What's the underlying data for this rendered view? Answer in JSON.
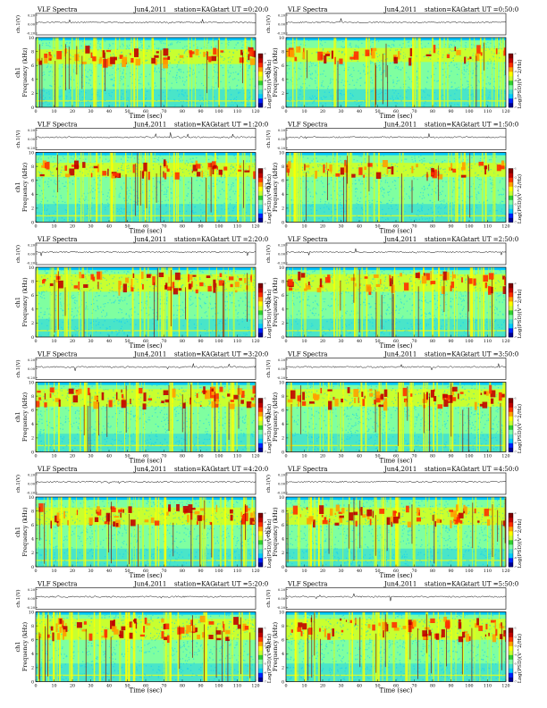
{
  "chart_data": [
    {
      "type": "heatmap",
      "header": {
        "left": "VLF Spectra",
        "date": "Jun4,2011",
        "station": "station=KAG",
        "start": "start UT =0:20:0"
      },
      "time_axis": {
        "label": "Time (sec)",
        "range": [
          0,
          120
        ],
        "ticks": [
          0,
          10,
          20,
          30,
          40,
          50,
          60,
          70,
          80,
          90,
          100,
          110,
          120
        ]
      },
      "freq_axis": {
        "label": "Frequency (kHz)",
        "ylabel2": "ch1",
        "range": [
          0,
          10
        ],
        "ticks": [
          0,
          2,
          4,
          6,
          8,
          10
        ]
      },
      "waveform_axis": {
        "label": "ch.1(V)",
        "ticks": [
          "0.20",
          "0.00",
          "-0.20"
        ],
        "range": [
          -0.2,
          0.2
        ]
      },
      "colorbar": {
        "label": "Log(PSD)(V^2/Hz)",
        "ticks": [
          "-1",
          "-2",
          "-3",
          "-4",
          "-5",
          "-6",
          "-7"
        ]
      },
      "band_low": 6.2,
      "band_high": 8.3,
      "intensity": 0.6
    },
    {
      "type": "heatmap",
      "header": {
        "left": "VLF Spectra",
        "date": "Jun4,2011",
        "station": "station=KAG",
        "start": "start UT =0:50:0"
      },
      "time_axis": {
        "label": "Time (sec)",
        "range": [
          0,
          120
        ],
        "ticks": [
          0,
          10,
          20,
          30,
          40,
          50,
          60,
          70,
          80,
          90,
          100,
          110,
          120
        ]
      },
      "freq_axis": {
        "label": "Frequency (kHz)",
        "ylabel2": "ch1",
        "range": [
          0,
          10
        ],
        "ticks": [
          0,
          2,
          4,
          6,
          8,
          10
        ]
      },
      "waveform_axis": {
        "label": "ch.1(V)",
        "ticks": [
          "0.20",
          "0.00",
          "-0.20"
        ],
        "range": [
          -0.2,
          0.2
        ]
      },
      "colorbar": {
        "label": "Log(PSD)(V^2/Hz)",
        "ticks": [
          "-1",
          "-2",
          "-3",
          "-4",
          "-5",
          "-6",
          "-7"
        ]
      },
      "band_low": 6.5,
      "band_high": 8.5,
      "intensity": 0.35
    },
    {
      "type": "heatmap",
      "header": {
        "left": "VLF Spectra",
        "date": "Jun4,2011",
        "station": "station=KAG",
        "start": "start UT =1:20:0"
      },
      "time_axis": {
        "label": "Time (sec)",
        "range": [
          0,
          120
        ],
        "ticks": [
          0,
          10,
          20,
          30,
          40,
          50,
          60,
          70,
          80,
          90,
          100,
          110,
          120
        ]
      },
      "freq_axis": {
        "label": "Frequency (kHz)",
        "ylabel2": "ch1",
        "range": [
          0,
          10
        ],
        "ticks": [
          0,
          2,
          4,
          6,
          8,
          10
        ]
      },
      "waveform_axis": {
        "label": "ch.1(V)",
        "ticks": [
          "0.20",
          "0.00",
          "-0.20"
        ],
        "range": [
          -0.2,
          0.2
        ]
      },
      "colorbar": {
        "label": "Log(PSD)(V^2/Hz)",
        "ticks": [
          "-1",
          "-2",
          "-3",
          "-4",
          "-5",
          "-6",
          "-7"
        ]
      },
      "band_low": 6.5,
      "band_high": 8.5,
      "intensity": 0.55
    },
    {
      "type": "heatmap",
      "header": {
        "left": "VLF Spectra",
        "date": "Jun4,2011",
        "station": "station=KAG",
        "start": "start UT =1:50:0"
      },
      "time_axis": {
        "label": "Time (sec)",
        "range": [
          0,
          120
        ],
        "ticks": [
          0,
          10,
          20,
          30,
          40,
          50,
          60,
          70,
          80,
          90,
          100,
          110,
          120
        ]
      },
      "freq_axis": {
        "label": "Frequency (kHz)",
        "ylabel2": "ch1",
        "range": [
          0,
          10
        ],
        "ticks": [
          0,
          2,
          4,
          6,
          8,
          10
        ]
      },
      "waveform_axis": {
        "label": "ch.1(V)",
        "ticks": [
          "0.20",
          "0.00",
          "-0.20"
        ],
        "range": [
          -0.2,
          0.2
        ]
      },
      "colorbar": {
        "label": "Log(PSD)(V^2/Hz)",
        "ticks": [
          "-1",
          "-2",
          "-3",
          "-4",
          "-5",
          "-6",
          "-7"
        ]
      },
      "band_low": 6.5,
      "band_high": 8.5,
      "intensity": 0.4
    },
    {
      "type": "heatmap",
      "header": {
        "left": "VLF Spectra",
        "date": "Jun4,2011",
        "station": "station=KAG",
        "start": "start UT =2:20:0"
      },
      "time_axis": {
        "label": "Time (sec)",
        "range": [
          0,
          120
        ],
        "ticks": [
          0,
          10,
          20,
          30,
          40,
          50,
          60,
          70,
          80,
          90,
          100,
          110,
          120
        ]
      },
      "freq_axis": {
        "label": "Frequency (kHz)",
        "ylabel2": "ch1",
        "range": [
          0,
          10
        ],
        "ticks": [
          0,
          2,
          4,
          6,
          8,
          10
        ]
      },
      "waveform_axis": {
        "label": "ch.1(V)",
        "ticks": [
          "0.20",
          "0.00",
          "-0.20"
        ],
        "range": [
          -0.2,
          0.2
        ]
      },
      "colorbar": {
        "label": "Log(PSD)(V^2/Hz)",
        "ticks": [
          "-1",
          "-2",
          "-3",
          "-4",
          "-5",
          "-6",
          "-7"
        ]
      },
      "band_low": 6.5,
      "band_high": 9.0,
      "intensity": 0.6
    },
    {
      "type": "heatmap",
      "header": {
        "left": "VLF Spectra",
        "date": "Jun4,2011",
        "station": "station=KAG",
        "start": "start UT =2:50:0"
      },
      "time_axis": {
        "label": "Time (sec)",
        "range": [
          0,
          120
        ],
        "ticks": [
          0,
          10,
          20,
          30,
          40,
          50,
          60,
          70,
          80,
          90,
          100,
          110,
          120
        ]
      },
      "freq_axis": {
        "label": "Frequency (kHz)",
        "ylabel2": "ch1",
        "range": [
          0,
          10
        ],
        "ticks": [
          0,
          2,
          4,
          6,
          8,
          10
        ]
      },
      "waveform_axis": {
        "label": "ch.1(V)",
        "ticks": [
          "0.20",
          "0.00",
          "-0.20"
        ],
        "range": [
          -0.2,
          0.2
        ]
      },
      "colorbar": {
        "label": "Log(PSD)(V^2/Hz)",
        "ticks": [
          "-1",
          "-2",
          "-3",
          "-4",
          "-5",
          "-6",
          "-7"
        ]
      },
      "band_low": 6.5,
      "band_high": 9.0,
      "intensity": 0.6
    },
    {
      "type": "heatmap",
      "header": {
        "left": "VLF Spectra",
        "date": "Jun4,2011",
        "station": "station=KAG",
        "start": "start UT =3:20:0"
      },
      "time_axis": {
        "label": "Time (sec)",
        "range": [
          0,
          120
        ],
        "ticks": [
          0,
          10,
          20,
          30,
          40,
          50,
          60,
          70,
          80,
          90,
          100,
          110,
          120
        ]
      },
      "freq_axis": {
        "label": "Frequency (kHz)",
        "ylabel2": "ch1",
        "range": [
          0,
          10
        ],
        "ticks": [
          0,
          2,
          4,
          6,
          8,
          10
        ]
      },
      "waveform_axis": {
        "label": "ch.1(V)",
        "ticks": [
          "0.20",
          "0.00",
          "-0.20"
        ],
        "range": [
          -0.2,
          0.2
        ]
      },
      "colorbar": {
        "label": "Log(PSD)(V^2/Hz)",
        "ticks": [
          "-1",
          "-2",
          "-3",
          "-4",
          "-5",
          "-6",
          "-7"
        ]
      },
      "band_low": 6.5,
      "band_high": 9.0,
      "intensity": 0.7
    },
    {
      "type": "heatmap",
      "header": {
        "left": "VLF Spectra",
        "date": "Jun4,2011",
        "station": "station=KAG",
        "start": "start UT =3:50:0"
      },
      "time_axis": {
        "label": "Time (sec)",
        "range": [
          0,
          120
        ],
        "ticks": [
          0,
          10,
          20,
          30,
          40,
          50,
          60,
          70,
          80,
          90,
          100,
          110,
          120
        ]
      },
      "freq_axis": {
        "label": "Frequency (kHz)",
        "ylabel2": "ch1",
        "range": [
          0,
          10
        ],
        "ticks": [
          0,
          2,
          4,
          6,
          8,
          10
        ]
      },
      "waveform_axis": {
        "label": "ch.1(V)",
        "ticks": [
          "0.20",
          "0.00",
          "-0.20"
        ],
        "range": [
          -0.2,
          0.2
        ]
      },
      "colorbar": {
        "label": "Log(PSD)(V^2/Hz)",
        "ticks": [
          "-1",
          "-2",
          "-3",
          "-4",
          "-5",
          "-6",
          "-7"
        ]
      },
      "band_low": 6.5,
      "band_high": 9.0,
      "intensity": 0.75
    },
    {
      "type": "heatmap",
      "header": {
        "left": "VLF Spectra",
        "date": "Jun4,2011",
        "station": "station=KAG",
        "start": "start UT =4:20:0"
      },
      "time_axis": {
        "label": "Time (sec)",
        "range": [
          0,
          120
        ],
        "ticks": [
          0,
          10,
          20,
          30,
          40,
          50,
          60,
          70,
          80,
          90,
          100,
          110,
          120
        ]
      },
      "freq_axis": {
        "label": "Frequency (kHz)",
        "ylabel2": "ch1",
        "range": [
          0,
          10
        ],
        "ticks": [
          0,
          2,
          4,
          6,
          8,
          10
        ]
      },
      "waveform_axis": {
        "label": "ch.1(V)",
        "ticks": [
          "0.20",
          "0.00",
          "-0.20"
        ],
        "range": [
          -0.2,
          0.2
        ]
      },
      "colorbar": {
        "label": "Log(PSD)(V^2/Hz)",
        "ticks": [
          "-1",
          "-2",
          "-3",
          "-4",
          "-5",
          "-6",
          "-7"
        ]
      },
      "band_low": 6.0,
      "band_high": 8.5,
      "intensity": 0.7
    },
    {
      "type": "heatmap",
      "header": {
        "left": "VLF Spectra",
        "date": "Jun4,2011",
        "station": "station=KAG",
        "start": "start UT =4:50:0"
      },
      "time_axis": {
        "label": "Time (sec)",
        "range": [
          0,
          120
        ],
        "ticks": [
          0,
          10,
          20,
          30,
          40,
          50,
          60,
          70,
          80,
          90,
          100,
          110,
          120
        ]
      },
      "freq_axis": {
        "label": "Frequency (kHz)",
        "ylabel2": "ch1",
        "range": [
          0,
          10
        ],
        "ticks": [
          0,
          2,
          4,
          6,
          8,
          10
        ]
      },
      "waveform_axis": {
        "label": "ch.1(V)",
        "ticks": [
          "0.20",
          "0.00",
          "-0.20"
        ],
        "range": [
          -0.2,
          0.2
        ]
      },
      "colorbar": {
        "label": "Log(PSD)(V^2/Hz)",
        "ticks": [
          "-1",
          "-2",
          "-3",
          "-4",
          "-5",
          "-6",
          "-7"
        ]
      },
      "band_low": 6.0,
      "band_high": 8.5,
      "intensity": 0.8
    },
    {
      "type": "heatmap",
      "header": {
        "left": "VLF Spectra",
        "date": "Jun4,2011",
        "station": "station=KAG",
        "start": "start UT =5:20:0"
      },
      "time_axis": {
        "label": "Time (sec)",
        "range": [
          0,
          120
        ],
        "ticks": [
          0,
          10,
          20,
          30,
          40,
          50,
          60,
          70,
          80,
          90,
          100,
          110,
          120
        ]
      },
      "freq_axis": {
        "label": "Frequency (kHz)",
        "ylabel2": "ch1",
        "range": [
          0,
          10
        ],
        "ticks": [
          0,
          2,
          4,
          6,
          8,
          10
        ]
      },
      "waveform_axis": {
        "label": "ch.1(V)",
        "ticks": [
          "0.20",
          "0.00",
          "-0.20"
        ],
        "range": [
          -0.2,
          0.2
        ]
      },
      "colorbar": {
        "label": "Log(PSD)(V^2/Hz)",
        "ticks": [
          "-1",
          "-2",
          "-3",
          "-4",
          "-5",
          "-6",
          "-7"
        ]
      },
      "band_low": 6.0,
      "band_high": 9.0,
      "intensity": 0.85
    },
    {
      "type": "heatmap",
      "header": {
        "left": "VLF Spectra",
        "date": "Jun4,2011",
        "station": "station=KAG",
        "start": "start UT =5:50:0"
      },
      "time_axis": {
        "label": "Time (sec)",
        "range": [
          0,
          120
        ],
        "ticks": [
          0,
          10,
          20,
          30,
          40,
          50,
          60,
          70,
          80,
          90,
          100,
          110,
          120
        ]
      },
      "freq_axis": {
        "label": "Frequency (kHz)",
        "ylabel2": "ch1",
        "range": [
          0,
          10
        ],
        "ticks": [
          0,
          2,
          4,
          6,
          8,
          10
        ]
      },
      "waveform_axis": {
        "label": "ch.1(V)",
        "ticks": [
          "0.20",
          "0.00",
          "-0.20"
        ],
        "range": [
          -0.2,
          0.2
        ]
      },
      "colorbar": {
        "label": "Log(PSD)(V^2/Hz)",
        "ticks": [
          "-1",
          "-2",
          "-3",
          "-4",
          "-5",
          "-6",
          "-7"
        ]
      },
      "band_low": 6.0,
      "band_high": 9.0,
      "intensity": 0.85
    }
  ],
  "colormap": [
    "#00008f",
    "#0020ff",
    "#00c8ff",
    "#40e0d0",
    "#7fffa0",
    "#30d030",
    "#c8ff30",
    "#ffff00",
    "#ffa000",
    "#ff3000",
    "#c00000",
    "#800000"
  ]
}
